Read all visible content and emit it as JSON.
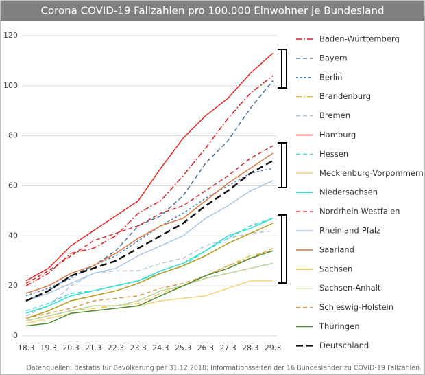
{
  "chart_data": {
    "type": "line",
    "title": "Corona COVID-19 Fallzahlen pro 100.000 Einwohner je Bundesland",
    "source": "Datenquellen: destatis für Bevölkerung per 31.12.2018; Informationsseiten der 16 Bundesländer zu COVID-19 Fallzahlen",
    "categories": [
      "18.3",
      "19.3",
      "20.3",
      "21.3",
      "22.3",
      "23.3",
      "24.3",
      "25.3",
      "26.3",
      "27.3",
      "28.3",
      "29.3"
    ],
    "ylim": [
      0,
      120
    ],
    "yticks": [
      0,
      20,
      40,
      60,
      80,
      100,
      120
    ],
    "grid": true,
    "series": [
      {
        "name": "Baden-Württemberg",
        "color": "#e0201b",
        "dash": "dashdot",
        "values": [
          20,
          25,
          33,
          35,
          40,
          49,
          54,
          64,
          75,
          87,
          97,
          104
        ]
      },
      {
        "name": "Bayern",
        "color": "#4a6f93",
        "dash": "dash",
        "values": [
          14,
          18,
          24,
          28,
          34,
          44,
          48,
          56,
          69,
          78,
          91,
          102
        ]
      },
      {
        "name": "Berlin",
        "color": "#4e7fc1",
        "dash": "shortdash",
        "values": [
          16,
          19,
          23,
          28,
          32,
          38,
          44,
          49,
          55,
          60,
          65,
          67
        ]
      },
      {
        "name": "Brandenburg",
        "color": "#f0c24b",
        "dash": "dashdot",
        "values": [
          6,
          8,
          10,
          11,
          12,
          13,
          17,
          20,
          24,
          28,
          32,
          34
        ]
      },
      {
        "name": "Bremen",
        "color": "#b0c4d8",
        "dash": "dash",
        "values": [
          8,
          12,
          20,
          25,
          26,
          26,
          29,
          31,
          36,
          39,
          41,
          42
        ]
      },
      {
        "name": "Hamburg",
        "color": "#e8251f",
        "dash": "solid",
        "values": [
          22,
          27,
          36,
          42,
          48,
          54,
          67,
          79,
          88,
          95,
          105,
          113
        ]
      },
      {
        "name": "Hessen",
        "color": "#3fd9d9",
        "dash": "dash",
        "values": [
          10,
          13,
          17,
          18,
          20,
          22,
          25,
          28,
          34,
          39,
          44,
          47
        ]
      },
      {
        "name": "Mecklenburg-Vorpommern",
        "color": "#f5d27a",
        "dash": "solid",
        "values": [
          5,
          7,
          9,
          10,
          11,
          12,
          14,
          15,
          16,
          19,
          22,
          22
        ]
      },
      {
        "name": "Niedersachsen",
        "color": "#2fe0d0",
        "dash": "solid",
        "values": [
          9,
          12,
          16,
          18,
          20,
          22,
          26,
          29,
          34,
          40,
          43,
          47
        ]
      },
      {
        "name": "Nordrhein-Westfalen",
        "color": "#d0282e",
        "dash": "dash",
        "values": [
          21,
          26,
          32,
          38,
          41,
          44,
          49,
          52,
          58,
          64,
          71,
          76
        ]
      },
      {
        "name": "Rheinland-Pfalz",
        "color": "#a9c6e4",
        "dash": "solid",
        "values": [
          14,
          17,
          21,
          25,
          27,
          32,
          36,
          40,
          47,
          52,
          58,
          62
        ]
      },
      {
        "name": "Saarland",
        "color": "#d9773d",
        "dash": "solid",
        "values": [
          17,
          20,
          25,
          28,
          33,
          39,
          44,
          47,
          54,
          61,
          67,
          73
        ]
      },
      {
        "name": "Sachsen",
        "color": "#b49a1c",
        "dash": "solid",
        "values": [
          7,
          10,
          14,
          16,
          18,
          21,
          25,
          28,
          32,
          37,
          41,
          45
        ]
      },
      {
        "name": "Sachsen-Anhalt",
        "color": "#b7d39a",
        "dash": "solid",
        "values": [
          6,
          8,
          10,
          12,
          12,
          14,
          18,
          20,
          23,
          25,
          27,
          29
        ]
      },
      {
        "name": "Schleswig-Holstein",
        "color": "#d5a04b",
        "dash": "dash",
        "values": [
          7,
          9,
          11,
          14,
          15,
          16,
          19,
          21,
          24,
          28,
          31,
          35
        ]
      },
      {
        "name": "Thüringen",
        "color": "#4c8a2d",
        "dash": "solid",
        "values": [
          4,
          5,
          9,
          10,
          11,
          12,
          16,
          20,
          24,
          27,
          31,
          34
        ]
      },
      {
        "name": "Deutschland",
        "color": "#111111",
        "dash": "longdash",
        "values": [
          14,
          18,
          24,
          27,
          30,
          35,
          40,
          45,
          52,
          58,
          65,
          70
        ]
      }
    ]
  }
}
